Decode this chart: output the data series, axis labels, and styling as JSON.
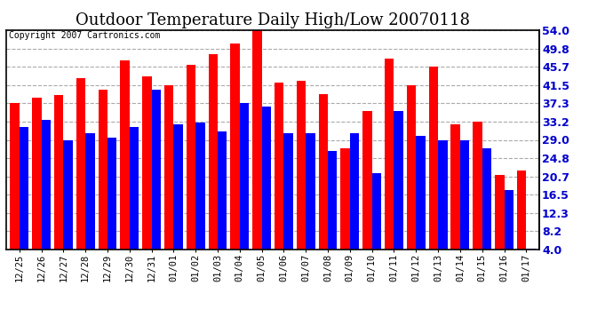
{
  "title": "Outdoor Temperature Daily High/Low 20070118",
  "copyright": "Copyright 2007 Cartronics.com",
  "dates": [
    "12/25",
    "12/26",
    "12/27",
    "12/28",
    "12/29",
    "12/30",
    "12/31",
    "01/01",
    "01/02",
    "01/03",
    "01/04",
    "01/05",
    "01/06",
    "01/07",
    "01/08",
    "01/09",
    "01/10",
    "01/11",
    "01/12",
    "01/13",
    "01/14",
    "01/15",
    "01/16",
    "01/17"
  ],
  "highs": [
    37.3,
    38.5,
    39.2,
    43.0,
    40.5,
    47.0,
    43.5,
    41.5,
    46.0,
    48.5,
    51.0,
    54.0,
    42.0,
    42.5,
    39.5,
    27.0,
    35.5,
    47.5,
    41.5,
    45.7,
    32.5,
    33.2,
    21.0,
    22.0
  ],
  "lows": [
    32.0,
    33.5,
    29.0,
    30.5,
    29.5,
    32.0,
    40.5,
    32.5,
    33.0,
    31.0,
    37.3,
    36.5,
    30.5,
    30.5,
    26.5,
    30.5,
    21.5,
    35.5,
    30.0,
    29.0,
    29.0,
    27.0,
    17.5,
    4.2
  ],
  "high_color": "#ff0000",
  "low_color": "#0000ff",
  "bg_color": "#ffffff",
  "grid_color": "#aaaaaa",
  "yticks": [
    4.0,
    8.2,
    12.3,
    16.5,
    20.7,
    24.8,
    29.0,
    33.2,
    37.3,
    41.5,
    45.7,
    49.8,
    54.0
  ],
  "ymin": 4.0,
  "ymax": 54.0,
  "title_fontsize": 13,
  "copyright_fontsize": 7,
  "tick_fontsize": 7.5,
  "ytick_fontsize": 9,
  "bar_width": 0.42
}
